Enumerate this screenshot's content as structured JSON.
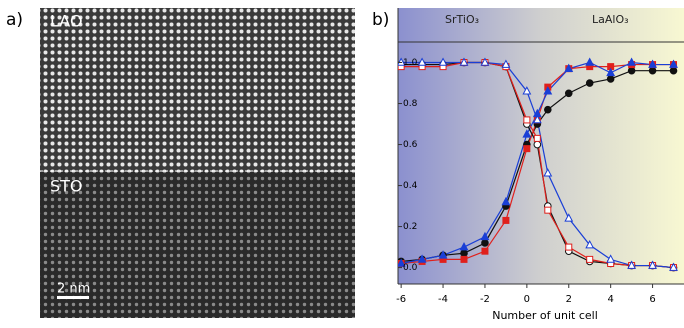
{
  "panel_a": {
    "label": "a)",
    "top_label": "LAO",
    "bottom_label": "STO",
    "scale_bar": "2 nm"
  },
  "chart_data": {
    "type": "line",
    "label": "b)",
    "xlabel": "Number of unit cell",
    "region_labels": [
      "SrTiO₃",
      "LaAlO₃"
    ],
    "x": [
      -6,
      -5,
      -4,
      -3,
      -2,
      -1,
      0,
      0.5,
      1,
      2,
      3,
      4,
      5,
      6,
      7
    ],
    "xlim": [
      -6.15,
      7.5
    ],
    "xticks": [
      -6,
      -4,
      -2,
      0,
      2,
      4,
      6
    ],
    "ylim": [
      -0.08,
      1.1
    ],
    "yticks": [
      {
        "value": 0,
        "label": "0.0"
      },
      {
        "value": 0.2,
        "label": "0.2"
      },
      {
        "value": 0.4,
        "label": "0.4"
      },
      {
        "value": 0.6,
        "label": "0.6"
      },
      {
        "value": 0.8,
        "label": "0.8"
      },
      {
        "value": 1.0,
        "label": "1.0"
      }
    ],
    "series": [
      {
        "color": "#111111",
        "marker": "circle",
        "filled": true,
        "values": [
          0.03,
          0.04,
          0.06,
          0.07,
          0.12,
          0.3,
          0.6,
          0.7,
          0.77,
          0.85,
          0.9,
          0.92,
          0.96,
          0.96,
          0.96
        ]
      },
      {
        "color": "#e0201c",
        "marker": "square",
        "filled": true,
        "values": [
          0.02,
          0.03,
          0.04,
          0.04,
          0.08,
          0.23,
          0.58,
          0.72,
          0.88,
          0.97,
          0.98,
          0.98,
          0.99,
          0.99,
          0.99
        ]
      },
      {
        "color": "#1a3fd6",
        "marker": "triangle",
        "filled": true,
        "values": [
          0.02,
          0.04,
          0.06,
          0.1,
          0.15,
          0.32,
          0.65,
          0.75,
          0.86,
          0.97,
          1.0,
          0.95,
          1.0,
          0.99,
          0.99
        ]
      },
      {
        "color": "#111111",
        "marker": "circle",
        "filled": false,
        "values": [
          0.99,
          0.99,
          0.99,
          1.0,
          1.0,
          0.98,
          0.7,
          0.6,
          0.3,
          0.08,
          0.03,
          0.02,
          0.01,
          0.01,
          0.0
        ]
      },
      {
        "color": "#e0201c",
        "marker": "square",
        "filled": false,
        "values": [
          0.98,
          0.98,
          0.98,
          1.0,
          1.0,
          0.98,
          0.72,
          0.63,
          0.28,
          0.1,
          0.04,
          0.02,
          0.01,
          0.01,
          0.0
        ]
      },
      {
        "color": "#1a3fd6",
        "marker": "triangle",
        "filled": false,
        "values": [
          1.0,
          1.0,
          1.0,
          1.0,
          1.0,
          0.99,
          0.86,
          0.72,
          0.46,
          0.24,
          0.11,
          0.04,
          0.01,
          0.01,
          0.0
        ]
      }
    ]
  }
}
